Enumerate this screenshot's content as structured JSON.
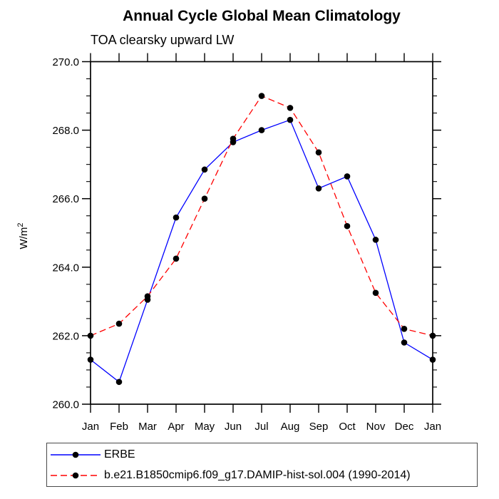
{
  "page": {
    "background": "#ffffff"
  },
  "chart_data": {
    "type": "line",
    "title": "Annual Cycle Global Mean Climatology",
    "subtitle": "TOA clearsky upward LW",
    "ylabel_base": "W/m",
    "ylabel_sup": "2",
    "xlabel": "",
    "x_categories": [
      "Jan",
      "Feb",
      "Mar",
      "Apr",
      "May",
      "Jun",
      "Jul",
      "Aug",
      "Sep",
      "Oct",
      "Nov",
      "Dec",
      "Jan"
    ],
    "ylim": [
      260.0,
      270.0
    ],
    "ytick_major": 2.0,
    "ytick_minor": 0.5,
    "ytick_labels": [
      "260.0",
      "262.0",
      "264.0",
      "266.0",
      "268.0",
      "270.0"
    ],
    "grid": false,
    "legend_position": "bottom",
    "axis_color": "#000000",
    "marker_color": "#000000",
    "series": [
      {
        "name": "ERBE",
        "color": "#0000ff",
        "style": "solid",
        "dash": "",
        "values": [
          261.3,
          260.65,
          263.05,
          265.45,
          266.85,
          267.65,
          268.0,
          268.3,
          266.3,
          266.65,
          264.8,
          261.8,
          261.3
        ]
      },
      {
        "name": "b.e21.B1850cmip6.f09_g17.DAMIP-hist-sol.004 (1990-2014)",
        "color": "#ff0000",
        "style": "dashed",
        "dash": "9 5",
        "values": [
          262.0,
          262.35,
          263.15,
          264.25,
          266.0,
          267.75,
          269.0,
          268.65,
          267.35,
          265.2,
          263.25,
          262.2,
          262.0
        ]
      }
    ]
  }
}
